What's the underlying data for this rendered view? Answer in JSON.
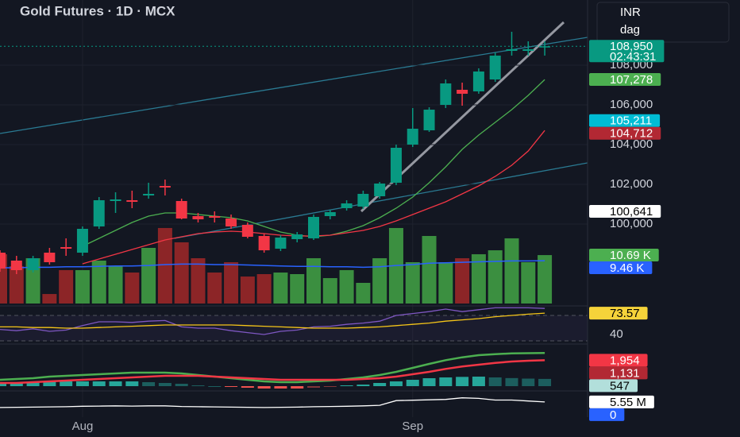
{
  "header": {
    "currency": "INR",
    "interval_label": "dag"
  },
  "chart_data": [
    {
      "type": "candlestick",
      "title": "Gold Futures · 1D · MCX",
      "categories": [
        null,
        null,
        null,
        null,
        null,
        "Aug",
        null,
        null,
        null,
        null,
        null,
        null,
        null,
        null,
        null,
        null,
        null,
        null,
        null,
        null,
        null,
        null,
        null,
        null,
        null,
        "Sep",
        null,
        null,
        null,
        null,
        null,
        null,
        null,
        null
      ],
      "open": [
        98560,
        98160,
        97680,
        98560,
        98840,
        98560,
        99880,
        101160,
        101200,
        101440,
        101920,
        101160,
        100400,
        100400,
        100280,
        99960,
        99400,
        98760,
        99240,
        99280,
        100400,
        100800,
        100880,
        101400,
        102080,
        104000,
        104720,
        106000,
        106760,
        106680,
        107280,
        108720,
        108720,
        108900
      ],
      "high": [
        98680,
        98400,
        98400,
        98800,
        99280,
        99880,
        101360,
        101600,
        101680,
        102080,
        102240,
        101280,
        100560,
        100640,
        100480,
        100080,
        99520,
        99440,
        99600,
        100480,
        100720,
        101200,
        101680,
        102120,
        104000,
        105840,
        105880,
        107280,
        107120,
        107840,
        108640,
        109680,
        109200,
        109200
      ],
      "low": [
        97600,
        97480,
        97560,
        97960,
        98400,
        98400,
        99760,
        100560,
        100800,
        101280,
        101440,
        100240,
        100080,
        100080,
        99760,
        99280,
        98560,
        98640,
        99080,
        99200,
        100240,
        100680,
        100760,
        101280,
        101960,
        103880,
        104640,
        105840,
        105960,
        106560,
        107160,
        108480,
        108480,
        108480
      ],
      "close": [
        97760,
        97680,
        98280,
        98080,
        98760,
        99760,
        101200,
        101240,
        101120,
        101520,
        101840,
        100280,
        100240,
        100320,
        99880,
        99360,
        98680,
        99320,
        99480,
        100360,
        100600,
        101040,
        101520,
        102040,
        103840,
        104800,
        105760,
        107080,
        106560,
        107680,
        108480,
        108800,
        108800,
        108950
      ],
      "up_color": "#089981",
      "down_color": "#f23645",
      "ylim": [
        95880,
        111280
      ],
      "yticks": [
        {
          "value": 100000,
          "label": "100,000"
        },
        {
          "value": 102000,
          "label": "102,000"
        },
        {
          "value": 104000,
          "label": "104,000"
        },
        {
          "value": 106000,
          "label": "106,000"
        },
        {
          "value": 108000,
          "label": "108,000"
        }
      ],
      "grid": true,
      "overlays": [
        {
          "color": "#4caf50",
          "values": [
            null,
            null,
            null,
            null,
            null,
            98880,
            99280,
            99680,
            100080,
            100400,
            100560,
            100560,
            100480,
            100400,
            100320,
            100160,
            99880,
            99600,
            99440,
            99360,
            99440,
            99640,
            99920,
            100320,
            100800,
            101360,
            102080,
            102880,
            103760,
            104480,
            105120,
            105760,
            106480,
            107278
          ]
        },
        {
          "color": "#f23645",
          "values": [
            null,
            null,
            null,
            null,
            null,
            98000,
            98240,
            98480,
            98720,
            98960,
            99200,
            99360,
            99520,
            99600,
            99640,
            99600,
            99520,
            99440,
            99400,
            99400,
            99440,
            99560,
            99680,
            99880,
            100160,
            100480,
            100800,
            101120,
            101520,
            101920,
            102400,
            102960,
            103680,
            104712
          ]
        }
      ],
      "volume": {
        "values": [
          10.88,
          8.25,
          10,
          2.1,
          7.37,
          7.37,
          9.47,
          8.25,
          6.84,
          12.28,
          16.67,
          13.51,
          10,
          6.84,
          9.12,
          5.96,
          6.49,
          6.84,
          6.49,
          10,
          5.61,
          7.37,
          4.56,
          10,
          16.67,
          9.12,
          14.91,
          9.12,
          10,
          10.88,
          11.75,
          14.39,
          9.12,
          10.69
        ],
        "ylim": [
          0,
          67
        ],
        "up_color": "#3b8f40",
        "down_color": "#8c2527",
        "ma": [
          7.9,
          7.9,
          8.0,
          8.0,
          8.1,
          8.1,
          8.2,
          8.3,
          8.3,
          8.4,
          8.6,
          8.7,
          8.7,
          8.6,
          8.6,
          8.5,
          8.4,
          8.3,
          8.2,
          8.2,
          8.1,
          8.1,
          8.0,
          8.1,
          8.4,
          8.6,
          8.9,
          9.0,
          9.1,
          9.2,
          9.3,
          9.4,
          9.4,
          9.46
        ],
        "ma_color": "#2962ff",
        "tags": [
          {
            "value": 10.69,
            "label": "10.69 K",
            "color": "#4caf50",
            "text_color": "#ffffff"
          },
          {
            "value": 9.46,
            "label": "9.46 K",
            "color": "#2962ff",
            "text_color": "#ffffff"
          }
        ]
      },
      "tags": [
        {
          "value": 108950,
          "label": "108,950",
          "countdown": "02:43:31",
          "color": "#089981",
          "text_color": "#ffffff"
        },
        {
          "value": 107278,
          "label": "107,278",
          "color": "#4caf50",
          "text_color": "#ffffff"
        },
        {
          "value": 105211,
          "label": "105,211",
          "color": "#00bcd4",
          "text_color": "#ffffff"
        },
        {
          "value": 104712,
          "label": "104,712",
          "color": "#b22833",
          "text_color": "#ffffff"
        },
        {
          "value": 100641,
          "label": "100,641",
          "color": "#ffffff",
          "text_color": "#000000"
        }
      ]
    },
    {
      "type": "line",
      "ylim": [
        26.25,
        85
      ],
      "yticks": [
        40
      ],
      "bands": [
        70,
        30
      ],
      "series": [
        {
          "color": "#7e57c2",
          "values": [
            48,
            46,
            49,
            45,
            47,
            54,
            60,
            60,
            59,
            61,
            62,
            52,
            50,
            50,
            46,
            43,
            40,
            45,
            47,
            52,
            53,
            56,
            58,
            61,
            70,
            73,
            76,
            80,
            76,
            79,
            82,
            82,
            82,
            81
          ]
        },
        {
          "color": "#f5c518",
          "values": [
            52,
            52,
            51,
            51,
            50,
            50,
            51,
            52,
            53,
            54,
            55,
            55,
            55,
            55,
            55,
            54,
            53,
            52,
            51,
            50,
            50,
            50,
            51,
            52,
            54,
            56,
            58,
            61,
            63,
            65,
            68,
            70,
            72,
            73.57
          ]
        }
      ],
      "tags": [
        {
          "value": 73.57,
          "color": "#f5d33a",
          "text_color": "#000000"
        }
      ]
    },
    {
      "type": "macd",
      "ylim": [
        -360,
        3060
      ],
      "histogram": {
        "values": [
          240,
          300,
          300,
          360,
          360,
          360,
          360,
          360,
          360,
          300,
          240,
          180,
          60,
          0,
          -60,
          -120,
          -180,
          -180,
          -180,
          -120,
          -60,
          60,
          120,
          240,
          360,
          480,
          600,
          660,
          700,
          720,
          660,
          610,
          570,
          547
        ],
        "up_color": "#26a69a",
        "down_color": "#ef5350"
      },
      "series": [
        {
          "color": "#4caf50",
          "values": [
            480,
            540,
            600,
            720,
            780,
            840,
            900,
            960,
            1020,
            1020,
            1020,
            960,
            840,
            720,
            600,
            480,
            360,
            300,
            300,
            360,
            420,
            540,
            660,
            840,
            1080,
            1380,
            1680,
            1960,
            2180,
            2340,
            2420,
            2470,
            2490,
            2501
          ]
        },
        {
          "color": "#f23645",
          "values": [
            240,
            240,
            300,
            360,
            420,
            480,
            540,
            600,
            660,
            720,
            780,
            780,
            780,
            720,
            660,
            600,
            540,
            480,
            480,
            480,
            480,
            480,
            540,
            600,
            720,
            900,
            1080,
            1300,
            1480,
            1620,
            1760,
            1860,
            1920,
            1954
          ]
        }
      ],
      "tags": [
        {
          "value": 1954,
          "label": "1,954",
          "color": "#f23645",
          "text_color": "#ffffff"
        },
        {
          "value": 1131,
          "label": "1,131",
          "color": "#b22833",
          "text_color": "#ffffff"
        },
        {
          "value": 547,
          "color": "#b2dfdb",
          "text_color": "#000000"
        }
      ]
    },
    {
      "type": "line",
      "ylim": [
        0,
        11
      ],
      "series": [
        {
          "color": "#ffffff",
          "values": [
            2.8,
            2.9,
            3.0,
            3.1,
            3.2,
            3.4,
            3.5,
            3.6,
            3.5,
            3.6,
            3.6,
            3.3,
            3.2,
            3.1,
            3.0,
            2.9,
            2.8,
            2.9,
            3.0,
            3.2,
            3.3,
            3.4,
            3.6,
            3.9,
            6.2,
            6.4,
            6.6,
            6.8,
            7.6,
            7.3,
            6.5,
            6.5,
            6.0,
            5.55
          ]
        }
      ],
      "tags": [
        {
          "value": 5.55,
          "label": "5.55 M",
          "color": "#ffffff",
          "text_color": "#000000"
        },
        {
          "value": 0,
          "color": "#2962ff",
          "text_color": "#ffffff"
        }
      ]
    }
  ]
}
